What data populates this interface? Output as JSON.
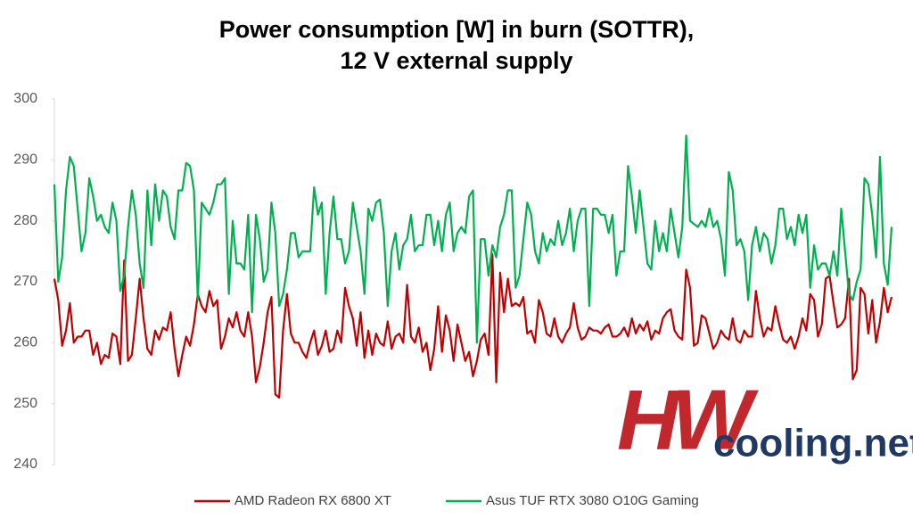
{
  "chart_data": {
    "type": "line",
    "title": "Power consumption [W] in burn (SOTTR),",
    "subtitle": "12 V external supply",
    "ylim": [
      240,
      300
    ],
    "yticks": [
      240,
      250,
      260,
      270,
      280,
      290,
      300
    ],
    "watermark_mark": "HW",
    "watermark_text": "cooling.net",
    "series": [
      {
        "name": "AMD Radeon RX 6800 XT",
        "color": "#c00000",
        "values": [
          270.5,
          267,
          259.5,
          262,
          266.5,
          260,
          261,
          261,
          262,
          262,
          258,
          260,
          256.5,
          258,
          257.5,
          261.5,
          261,
          256.5,
          273.5,
          257,
          258,
          264,
          270.5,
          264,
          259,
          258,
          262,
          260.5,
          262.5,
          262,
          265,
          259,
          254.5,
          258,
          261,
          259.5,
          263,
          268,
          266,
          265,
          268.5,
          266,
          267,
          259,
          261,
          264,
          262.5,
          265,
          262,
          261,
          265,
          261,
          253.5,
          256,
          260,
          265,
          267.5,
          251.5,
          251,
          262,
          268,
          261.5,
          260,
          260,
          258.5,
          257.5,
          260,
          262,
          258,
          259.5,
          262,
          258.5,
          259,
          262,
          260,
          269,
          266,
          264,
          259.5,
          265,
          257.5,
          262,
          258,
          261.5,
          260,
          259.5,
          263.5,
          259,
          261,
          261.5,
          260,
          269.5,
          261,
          260,
          262.5,
          258.5,
          260,
          255.5,
          259,
          266,
          258.5,
          264.5,
          262,
          257,
          263,
          260,
          257,
          258.5,
          254.5,
          257,
          260.5,
          261.5,
          258,
          274.5,
          253.5,
          271.5,
          265,
          270.5,
          266,
          266.5,
          266,
          267.5,
          261.5,
          262,
          260,
          267,
          265,
          261.5,
          261,
          264,
          261,
          260,
          261.5,
          262.5,
          266.5,
          262.5,
          260.5,
          261,
          262.5,
          262,
          262,
          261.5,
          262.5,
          263,
          261,
          261,
          261.5,
          262.5,
          261,
          264,
          261.5,
          263,
          262,
          263.5,
          260.5,
          262,
          261.5,
          264,
          265,
          265.5,
          262,
          261,
          260.5,
          272,
          269,
          259.5,
          260,
          264.5,
          264,
          261.5,
          259,
          260,
          262,
          261,
          260.5,
          264,
          260.5,
          260,
          262,
          261,
          261,
          268.5,
          264,
          261,
          262.5,
          262,
          266,
          263,
          260.5,
          260,
          261,
          259,
          261,
          264,
          262,
          268,
          267,
          261,
          263,
          270.5,
          271,
          266.5,
          262.5,
          263,
          264,
          270.5,
          254,
          255.5,
          269,
          268,
          261.5,
          267,
          260,
          263.5,
          269,
          265,
          267.5
        ]
      },
      {
        "name": "Asus TUF RTX 3080 O10G Gaming",
        "color": "#00b050",
        "values": [
          286,
          270,
          274,
          285,
          290.5,
          289,
          282,
          275,
          278,
          287,
          284,
          280,
          281,
          279,
          278,
          283,
          280,
          268.5,
          271,
          279,
          285,
          281,
          273,
          269,
          285,
          276,
          286,
          280,
          285,
          284,
          279,
          277,
          285,
          285,
          289.5,
          289,
          285,
          267,
          283,
          282,
          281,
          283,
          286,
          286,
          287,
          268,
          280,
          273,
          273,
          272,
          281,
          265,
          281,
          277,
          270,
          272,
          283,
          278,
          266,
          268,
          272,
          278,
          278,
          274,
          275,
          275,
          275,
          285.5,
          281,
          283,
          268,
          278,
          284,
          277,
          277,
          273,
          275,
          283,
          279,
          275,
          268,
          282,
          280,
          283,
          283.5,
          278,
          266,
          275,
          278,
          272,
          276,
          277,
          281,
          275,
          276,
          276,
          281,
          281,
          276,
          280,
          275,
          281,
          283,
          275,
          278,
          279,
          278,
          284,
          285,
          260,
          277,
          277,
          271,
          276,
          274,
          279,
          281,
          285,
          285,
          269,
          271,
          277,
          283,
          281,
          275,
          273,
          278,
          275,
          277,
          276,
          280,
          276,
          278,
          282,
          275,
          280,
          282,
          282,
          266,
          282,
          282,
          281,
          281,
          278,
          281,
          271,
          275,
          275,
          289,
          284,
          278,
          285,
          279,
          273,
          272,
          280,
          275,
          278,
          275,
          282,
          278,
          274,
          279,
          294,
          280,
          279.5,
          279,
          280,
          279,
          282,
          279,
          280,
          277,
          271,
          288,
          285,
          276,
          277,
          275,
          267,
          276,
          279,
          275,
          278,
          277,
          273,
          276,
          282,
          282,
          277,
          279,
          276,
          281,
          278,
          281,
          269,
          276,
          272,
          273,
          273,
          271,
          275,
          271,
          282,
          275,
          268,
          267,
          270,
          272,
          287,
          286,
          281,
          274,
          290.5,
          273,
          269.5,
          279
        ]
      }
    ]
  }
}
